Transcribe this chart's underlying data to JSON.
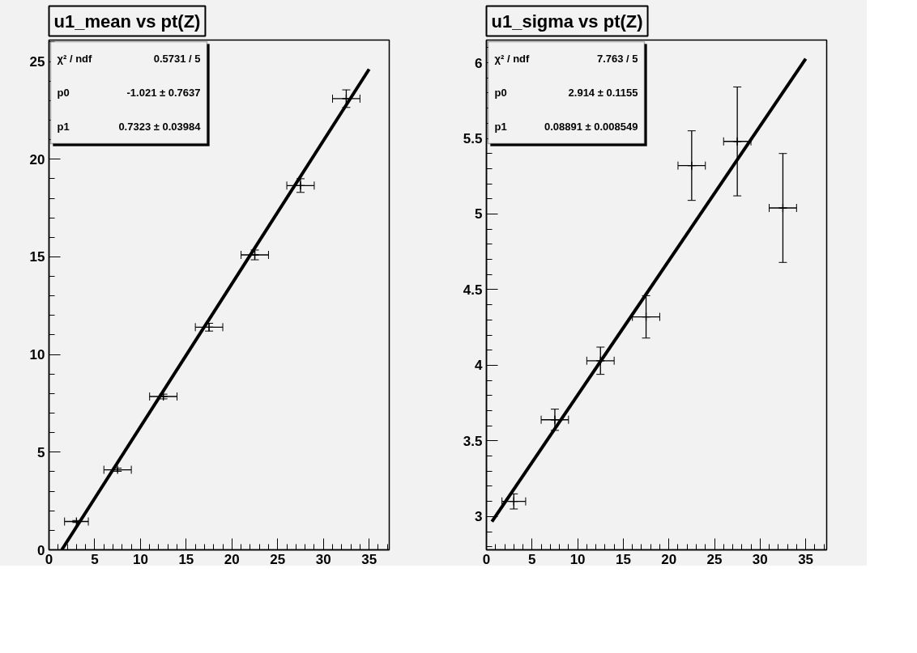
{
  "chart_data": [
    {
      "type": "scatter",
      "title": "u1_mean vs pt(Z)",
      "xlim": [
        0,
        37.2
      ],
      "ylim": [
        0,
        26.1
      ],
      "xticks": [
        0,
        5,
        10,
        15,
        20,
        25,
        30,
        35
      ],
      "yticks": [
        0,
        5,
        10,
        15,
        20,
        25
      ],
      "grid": false,
      "annotations": [
        "χ² / ndf",
        "0.5731 / 5",
        "p0",
        "-1.021 ± 0.7637",
        "p1",
        "0.7323 ± 0.03984"
      ],
      "series": [
        {
          "type": "scatter",
          "marker": "cross",
          "color": "#000000",
          "x": [
            3,
            7.5,
            12.5,
            17.5,
            22.5,
            27.5,
            32.5
          ],
          "values": [
            1.45,
            4.1,
            7.85,
            11.4,
            15.1,
            18.65,
            23.1
          ],
          "errors": [
            0.05,
            0.08,
            0.12,
            0.2,
            0.25,
            0.35,
            0.45
          ],
          "xerrors": [
            1.3,
            1.5,
            1.5,
            1.5,
            1.5,
            1.5,
            1.5
          ]
        },
        {
          "type": "line",
          "color": "#000000",
          "x": [
            1.394,
            35
          ],
          "values": [
            0,
            24.61
          ]
        }
      ]
    },
    {
      "type": "scatter",
      "title": "u1_sigma vs pt(Z)",
      "xlim": [
        0,
        37.3
      ],
      "ylim": [
        2.78,
        6.15
      ],
      "xticks": [
        0,
        5,
        10,
        15,
        20,
        25,
        30,
        35
      ],
      "yticks": [
        3,
        3.5,
        4,
        4.5,
        5,
        5.5,
        6
      ],
      "grid": false,
      "annotations": [
        "χ² / ndf",
        "7.763 / 5",
        "p0",
        "2.914 ± 0.1155",
        "p1",
        "0.08891 ± 0.008549"
      ],
      "series": [
        {
          "type": "scatter",
          "marker": "cross",
          "color": "#000000",
          "x": [
            3,
            7.5,
            12.5,
            17.5,
            22.5,
            27.5,
            32.5
          ],
          "values": [
            3.1,
            3.64,
            4.03,
            4.32,
            5.32,
            5.48,
            5.04
          ],
          "errors": [
            0.05,
            0.07,
            0.09,
            0.14,
            0.23,
            0.36,
            0.36
          ],
          "xerrors": [
            1.3,
            1.5,
            1.5,
            1.5,
            1.5,
            1.5,
            1.5
          ]
        },
        {
          "type": "line",
          "color": "#000000",
          "x": [
            0.6,
            35
          ],
          "values": [
            2.967,
            6.026
          ]
        }
      ]
    }
  ]
}
